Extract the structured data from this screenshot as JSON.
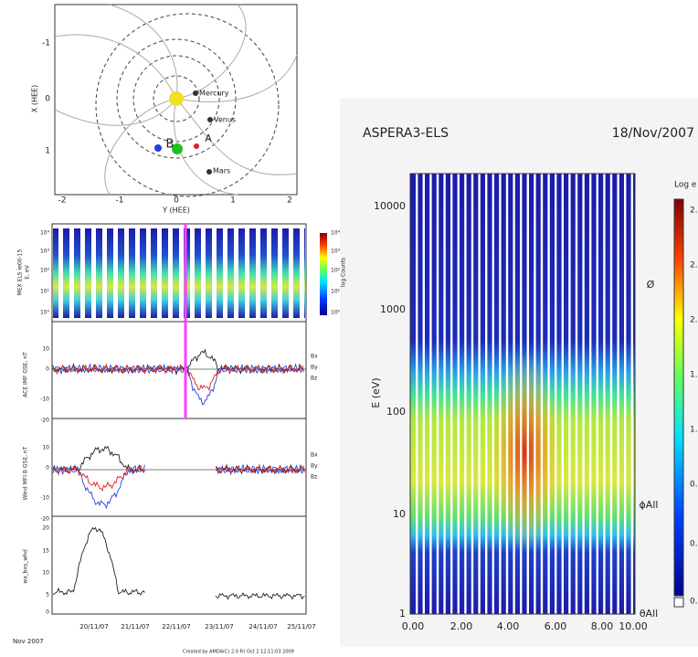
{
  "orbit": {
    "x_label": "X (HEE)",
    "y_label": "Y (HEE)",
    "x_ticks": [
      "-1",
      "0",
      "1"
    ],
    "y_ticks": [
      "-2",
      "-1",
      "0",
      "1",
      "2"
    ],
    "planets": [
      "Mercury",
      "Venus",
      "Mars"
    ],
    "spacecraft": [
      "B",
      "A"
    ]
  },
  "timeseries": {
    "panels": [
      {
        "y_label": "MEX ELS ie00-15",
        "unit": "E, eV",
        "y_ticks": [
          "10⁴",
          "10³",
          "10²",
          "10¹",
          "10⁰"
        ],
        "colorbar_ticks": [
          "10⁴",
          "10³",
          "10²",
          "10¹",
          "10⁰"
        ],
        "colorbar_label": "log Counts"
      },
      {
        "y_label": "ACE IMF GSE, nT",
        "y_ticks": [
          "10",
          "0",
          "-10",
          "-20"
        ],
        "legend": [
          "Bx",
          "By",
          "Bz"
        ]
      },
      {
        "y_label": "Wind MFI B GSE, nT",
        "y_ticks": [
          "10",
          "0",
          "-10",
          "-20"
        ],
        "legend": [
          "Bx",
          "By",
          "Bz"
        ]
      },
      {
        "y_label": "wa_bxs_whd",
        "y_ticks": [
          "20",
          "15",
          "10",
          "5",
          "0"
        ]
      }
    ],
    "x_ticks": [
      "20/11/07",
      "21/11/07",
      "22/11/07",
      "23/11/07",
      "24/11/07",
      "25/11/07"
    ],
    "date": "Nov 2007",
    "credit": "Created by AMDA(C) 2.0 Fri Oct  2 12:11:03 2009"
  },
  "spectrogram": {
    "instrument": "ASPERA3-ELS",
    "date": "18/Nov/2007",
    "y_label": "E (eV)",
    "y_ticks": [
      "10000",
      "1000",
      "100",
      "10",
      "1"
    ],
    "x_ticks": [
      "0.00",
      "2.00",
      "4.00",
      "6.00",
      "8.00",
      "10.00"
    ],
    "colorbar_label": "Log e",
    "colorbar_ticks": [
      "2.",
      "2.",
      "2.",
      "1.",
      "1.",
      "0.",
      "0.",
      "0."
    ],
    "right_labels": [
      "Ø",
      "ϕAll",
      "θAll"
    ]
  }
}
